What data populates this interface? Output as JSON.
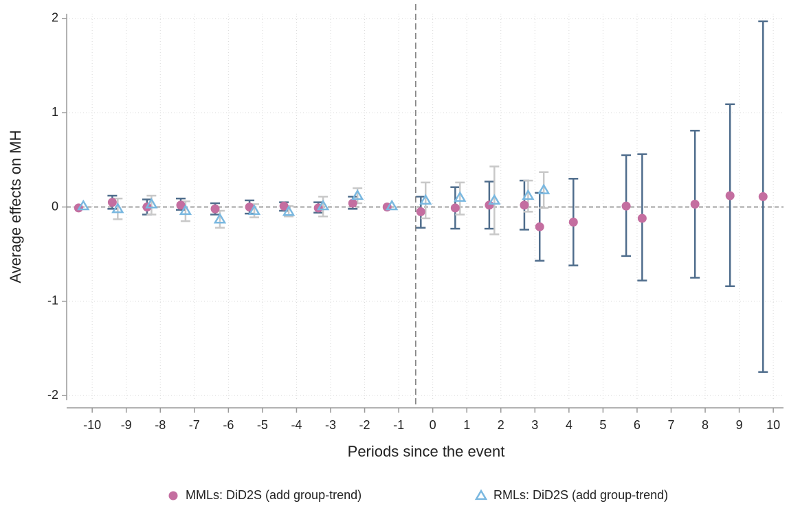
{
  "chart_data": {
    "type": "scatter",
    "x_label": "Periods since the event",
    "y_label": "Average effects on MH",
    "xlim": [
      -10.75,
      10.3
    ],
    "ylim": [
      -2.05,
      2.05
    ],
    "xticks": [
      -10,
      -9,
      -8,
      -7,
      -6,
      -5,
      -4,
      -3,
      -2,
      -1,
      0,
      1,
      2,
      3,
      4,
      5,
      6,
      7,
      8,
      9,
      10
    ],
    "yticks": [
      -2,
      -1,
      0,
      1,
      2
    ],
    "grid": true,
    "vlines": [
      -0.5
    ],
    "hlines": [
      0
    ],
    "legend": "bottom",
    "series": [
      {
        "name": "MMLs: DiD2S (add group-trend)",
        "marker": "circle",
        "color": "#c46ea0",
        "ci_color": "#4f6d8c",
        "x": [
          -10.4,
          -9.41,
          -8.39,
          -7.4,
          -6.39,
          -5.38,
          -4.37,
          -3.36,
          -2.35,
          -1.34,
          -0.35,
          0.66,
          1.66,
          2.69,
          3.14,
          4.13,
          5.68,
          6.15,
          7.7,
          8.73,
          9.7
        ],
        "values": [
          -0.01,
          0.05,
          0.0,
          0.02,
          -0.02,
          0.0,
          0.01,
          -0.01,
          0.04,
          0.0,
          -0.05,
          -0.01,
          0.02,
          0.02,
          -0.21,
          -0.16,
          0.01,
          -0.12,
          0.03,
          0.12,
          0.11
        ],
        "lower": [
          null,
          -0.02,
          -0.08,
          -0.03,
          -0.08,
          -0.07,
          -0.04,
          -0.06,
          -0.02,
          null,
          -0.22,
          -0.23,
          -0.23,
          -0.24,
          -0.57,
          -0.62,
          -0.52,
          -0.78,
          -0.75,
          -0.84,
          -1.75
        ],
        "upper": [
          null,
          0.12,
          0.08,
          0.09,
          0.04,
          0.07,
          0.05,
          0.05,
          0.11,
          null,
          0.11,
          0.21,
          0.27,
          0.28,
          0.15,
          0.3,
          0.55,
          0.56,
          0.81,
          1.09,
          1.97
        ]
      },
      {
        "name": "RMLs: DiD2S (add group-trend)",
        "marker": "triangle",
        "color": "#7ab8e0",
        "ci_color": "#c8c8c8",
        "x": [
          -10.26,
          -9.25,
          -8.26,
          -7.26,
          -6.25,
          -5.24,
          -4.23,
          -3.22,
          -2.21,
          -1.2,
          -0.21,
          0.8,
          1.81,
          2.8,
          3.26
        ],
        "values": [
          0.01,
          -0.02,
          0.03,
          -0.04,
          -0.13,
          -0.04,
          -0.05,
          0.01,
          0.12,
          0.01,
          0.07,
          0.1,
          0.07,
          0.12,
          0.18
        ],
        "lower": [
          null,
          -0.13,
          -0.08,
          -0.15,
          -0.22,
          -0.11,
          -0.1,
          -0.1,
          0.04,
          null,
          -0.12,
          -0.08,
          -0.29,
          -0.05,
          -0.01
        ],
        "upper": [
          null,
          0.09,
          0.12,
          0.06,
          -0.04,
          0.03,
          0.01,
          0.11,
          0.2,
          null,
          0.26,
          0.26,
          0.43,
          0.28,
          0.37
        ]
      }
    ]
  }
}
